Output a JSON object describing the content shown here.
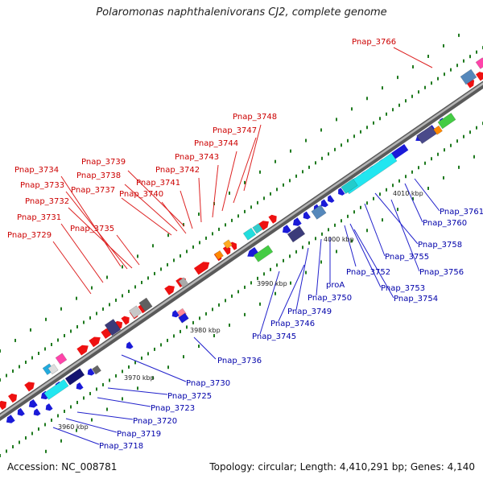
{
  "title": "Polaromonas naphthalenivorans CJ2, complete genome",
  "footer": {
    "accession": "Accession: NC_008781",
    "summary": "Topology: circular; Length: 4,410,291 bp; Genes: 4,140"
  },
  "colors": {
    "forward_label": "#cc0000",
    "reverse_label": "#0000aa",
    "backbone": "#8a8a8a"
  },
  "ticks": [
    {
      "label": "3960 kbp"
    },
    {
      "label": "3970 kbp"
    },
    {
      "label": "3980 kbp"
    },
    {
      "label": "3990 kbp"
    },
    {
      "label": "4000 kbp"
    },
    {
      "label": "4010 kbp"
    }
  ],
  "forward_labels": [
    {
      "text": "Pnap_3766"
    },
    {
      "text": "Pnap_3748"
    },
    {
      "text": "Pnap_3747"
    },
    {
      "text": "Pnap_3744"
    },
    {
      "text": "Pnap_3743"
    },
    {
      "text": "Pnap_3742"
    },
    {
      "text": "Pnap_3741"
    },
    {
      "text": "Pnap_3740"
    },
    {
      "text": "Pnap_3739"
    },
    {
      "text": "Pnap_3738"
    },
    {
      "text": "Pnap_3737"
    },
    {
      "text": "Pnap_3734"
    },
    {
      "text": "Pnap_3733"
    },
    {
      "text": "Pnap_3732"
    },
    {
      "text": "Pnap_3731"
    },
    {
      "text": "Pnap_3735"
    },
    {
      "text": "Pnap_3729"
    }
  ],
  "reverse_labels": [
    {
      "text": "Pnap_3761"
    },
    {
      "text": "Pnap_3760"
    },
    {
      "text": "Pnap_3758"
    },
    {
      "text": "Pnap_3756"
    },
    {
      "text": "Pnap_3755"
    },
    {
      "text": "Pnap_3752"
    },
    {
      "text": "Pnap_3753"
    },
    {
      "text": "Pnap_3754"
    },
    {
      "text": "proA"
    },
    {
      "text": "Pnap_3750"
    },
    {
      "text": "Pnap_3749"
    },
    {
      "text": "Pnap_3746"
    },
    {
      "text": "Pnap_3745"
    },
    {
      "text": "Pnap_3736"
    },
    {
      "text": "Pnap_3730"
    },
    {
      "text": "Pnap_3725"
    },
    {
      "text": "Pnap_3723"
    },
    {
      "text": "Pnap_3720"
    },
    {
      "text": "Pnap_3719"
    },
    {
      "text": "Pnap_3718"
    }
  ]
}
